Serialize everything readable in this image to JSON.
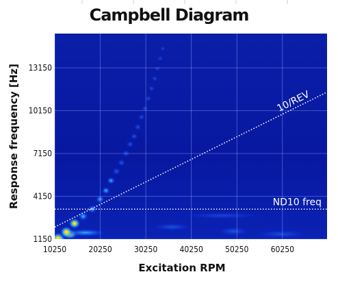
{
  "chart_data": {
    "type": "heatmap",
    "title": "Campbell Diagram",
    "xlabel": "Excitation RPM",
    "ylabel": "Response frequency [Hz]",
    "x_ticks": [
      10250,
      20250,
      30250,
      40250,
      50250,
      60250
    ],
    "y_ticks": [
      1150,
      4150,
      7150,
      10150,
      13150
    ],
    "xlim": [
      10250,
      70050
    ],
    "ylim": [
      1150,
      15550
    ],
    "grid": true,
    "colormap": [
      "#00008f",
      "#0018d8",
      "#1f6fff",
      "#3fd8ff",
      "#e8ff30",
      "#ffd000"
    ],
    "background_color": "#0a1aa0",
    "lines": [
      {
        "label": "10/REV",
        "kind": "order",
        "order": 10,
        "x_range": [
          10250,
          70050
        ],
        "color": "#ffffff"
      },
      {
        "label": "ND10 freq",
        "kind": "horizontal",
        "y": 3250,
        "color": "#ffffff"
      }
    ],
    "resonance_trace": [
      {
        "x": 11000,
        "y": 1200,
        "intensity": 1.0
      },
      {
        "x": 12800,
        "y": 1650,
        "intensity": 0.95
      },
      {
        "x": 14600,
        "y": 2250,
        "intensity": 0.85
      },
      {
        "x": 16500,
        "y": 2750,
        "intensity": 0.7
      },
      {
        "x": 18500,
        "y": 3250,
        "intensity": 0.62
      },
      {
        "x": 20200,
        "y": 3950,
        "intensity": 0.55
      },
      {
        "x": 21500,
        "y": 4550,
        "intensity": 0.5
      },
      {
        "x": 22600,
        "y": 5250,
        "intensity": 0.48
      },
      {
        "x": 23800,
        "y": 5900,
        "intensity": 0.45
      },
      {
        "x": 24900,
        "y": 6500,
        "intensity": 0.42
      },
      {
        "x": 25900,
        "y": 7150,
        "intensity": 0.4
      },
      {
        "x": 26800,
        "y": 7800,
        "intensity": 0.38
      },
      {
        "x": 27700,
        "y": 8350,
        "intensity": 0.36
      },
      {
        "x": 28500,
        "y": 9000,
        "intensity": 0.34
      },
      {
        "x": 29300,
        "y": 9700,
        "intensity": 0.32
      },
      {
        "x": 30100,
        "y": 10300,
        "intensity": 0.3
      },
      {
        "x": 30800,
        "y": 11000,
        "intensity": 0.28
      },
      {
        "x": 31500,
        "y": 11700,
        "intensity": 0.26
      },
      {
        "x": 32200,
        "y": 12400,
        "intensity": 0.24
      },
      {
        "x": 32800,
        "y": 13100,
        "intensity": 0.22
      },
      {
        "x": 33400,
        "y": 13800,
        "intensity": 0.2
      },
      {
        "x": 34000,
        "y": 14500,
        "intensity": 0.18
      }
    ],
    "hotspots": [
      {
        "x": 10800,
        "y": 1150,
        "intensity": 1.0,
        "spread_x": 2200,
        "spread_y": 250
      },
      {
        "x": 13500,
        "y": 1500,
        "intensity": 0.85,
        "spread_x": 1800,
        "spread_y": 350
      },
      {
        "x": 17000,
        "y": 1600,
        "intensity": 0.45,
        "spread_x": 5000,
        "spread_y": 300
      },
      {
        "x": 36000,
        "y": 2000,
        "intensity": 0.32,
        "spread_x": 4500,
        "spread_y": 280
      },
      {
        "x": 49500,
        "y": 1700,
        "intensity": 0.38,
        "spread_x": 3500,
        "spread_y": 320
      },
      {
        "x": 60000,
        "y": 1500,
        "intensity": 0.25,
        "spread_x": 6000,
        "spread_y": 300
      },
      {
        "x": 47000,
        "y": 2800,
        "intensity": 0.18,
        "spread_x": 9000,
        "spread_y": 250
      }
    ]
  }
}
